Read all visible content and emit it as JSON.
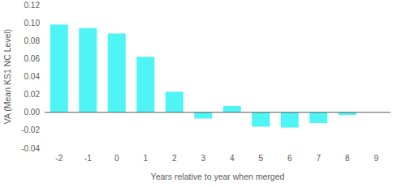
{
  "chart_data": {
    "type": "bar",
    "x_label": "Years relative to year when merged",
    "y_label": "VA (Mean KS1 NC Level)",
    "categories": [
      "-2",
      "-1",
      "0",
      "1",
      "2",
      "3",
      "4",
      "5",
      "6",
      "7",
      "8",
      "9"
    ],
    "values": [
      0.098,
      0.094,
      0.088,
      0.062,
      0.023,
      -0.007,
      0.007,
      -0.016,
      -0.017,
      -0.012,
      -0.003,
      null
    ],
    "color": "#4ff5f5",
    "ylim": [
      -0.04,
      0.12
    ],
    "yticks": [
      {
        "value": -0.04,
        "label": "-0.04"
      },
      {
        "value": -0.02,
        "label": "-0.02"
      },
      {
        "value": 0,
        "label": "0.00"
      },
      {
        "value": 0.02,
        "label": "0.02"
      },
      {
        "value": 0.04,
        "label": "0.04"
      },
      {
        "value": 0.06,
        "label": "0.06"
      },
      {
        "value": 0.08,
        "label": "0.08"
      },
      {
        "value": 0.1,
        "label": "0.10"
      },
      {
        "value": 0.12,
        "label": "0.12"
      }
    ],
    "grid": false
  }
}
